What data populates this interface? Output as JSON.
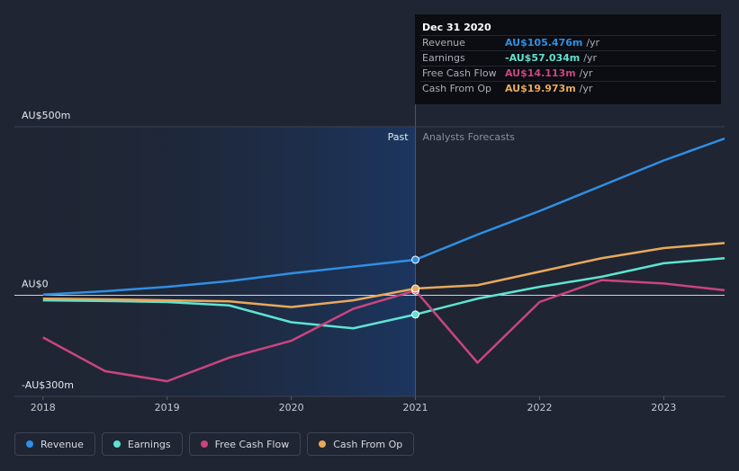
{
  "chart_data": {
    "type": "line",
    "x": [
      2018,
      2018.5,
      2019,
      2019.5,
      2020,
      2020.5,
      2021,
      2021.5,
      2022,
      2022.5,
      2023,
      2023.49
    ],
    "series": [
      {
        "name": "Revenue",
        "color": "#2f8fe3",
        "values": [
          2,
          12,
          25,
          42,
          65,
          85,
          105.476,
          180,
          250,
          325,
          400,
          465
        ]
      },
      {
        "name": "Earnings",
        "color": "#5fe3d1",
        "values": [
          -15,
          -17,
          -20,
          -30,
          -80,
          -98,
          -57.034,
          -10,
          25,
          55,
          95,
          110
        ]
      },
      {
        "name": "Free Cash Flow",
        "color": "#c9457e",
        "values": [
          -125,
          -225,
          -255,
          -185,
          -135,
          -40,
          14.113,
          -200,
          -20,
          45,
          35,
          15
        ]
      },
      {
        "name": "Cash From Op",
        "color": "#e8a95b",
        "values": [
          -10,
          -12,
          -15,
          -18,
          -35,
          -15,
          19.973,
          30,
          70,
          110,
          140,
          155
        ]
      }
    ],
    "xlim": [
      2017.77,
      2023.49
    ],
    "xticks": [
      2018,
      2019,
      2020,
      2021,
      2022,
      2023
    ],
    "ylim": [
      -300,
      500
    ],
    "yticks": [
      {
        "value": 500,
        "label": "AU$500m"
      },
      {
        "value": 0,
        "label": "AU$0"
      },
      {
        "value": -300,
        "label": "-AU$300m"
      }
    ],
    "forecast_start": 2021,
    "past_label": "Past",
    "forecast_label": "Analysts Forecasts",
    "tooltip": {
      "title": "Dec 31 2020",
      "index": 6,
      "rows": [
        {
          "label": "Revenue",
          "value": "AU$105.476m",
          "unit": "/yr"
        },
        {
          "label": "Earnings",
          "value": "-AU$57.034m",
          "unit": "/yr"
        },
        {
          "label": "Free Cash Flow",
          "value": "AU$14.113m",
          "unit": "/yr"
        },
        {
          "label": "Cash From Op",
          "value": "AU$19.973m",
          "unit": "/yr"
        }
      ]
    }
  }
}
